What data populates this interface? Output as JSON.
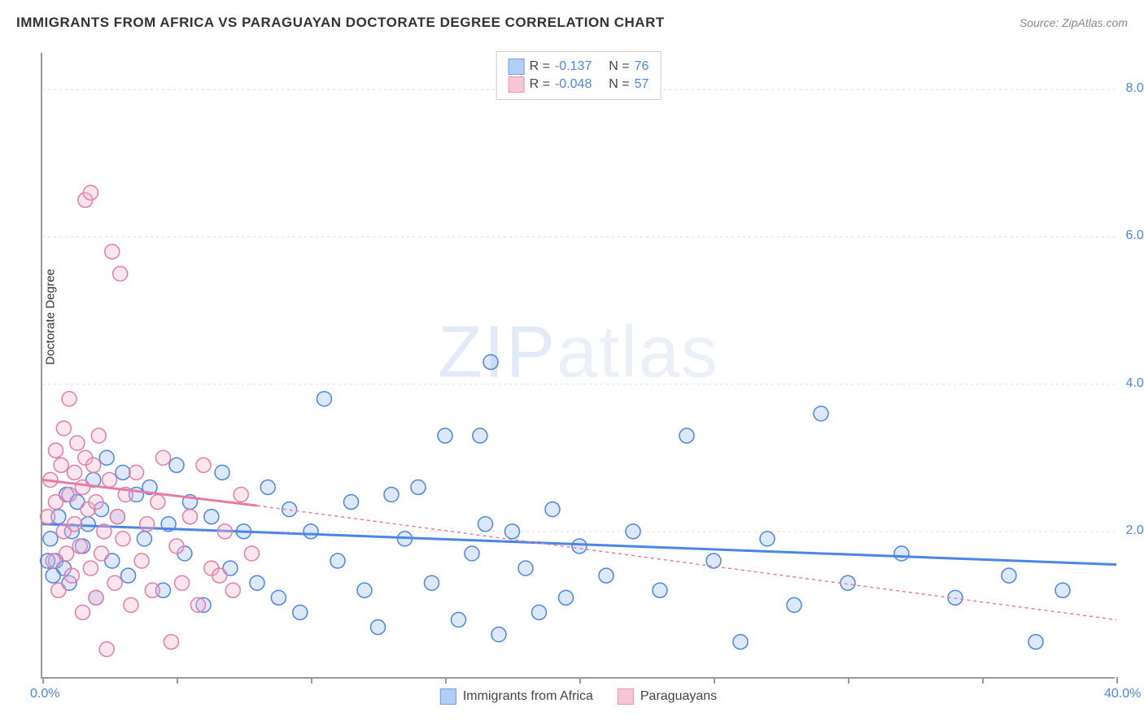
{
  "title": "IMMIGRANTS FROM AFRICA VS PARAGUAYAN DOCTORATE DEGREE CORRELATION CHART",
  "source": "Source: ZipAtlas.com",
  "watermark": {
    "bold": "ZIP",
    "light": "atlas"
  },
  "yaxis_title": "Doctorate Degree",
  "chart": {
    "type": "scatter",
    "background_color": "#ffffff",
    "grid_color": "#dddddd",
    "xlim": [
      0,
      40
    ],
    "ylim": [
      0,
      8.5
    ],
    "xtick_positions": [
      0,
      5,
      10,
      15,
      20,
      25,
      30,
      35,
      40
    ],
    "xtick_labels_shown": {
      "0": "0.0%",
      "40": "40.0%"
    },
    "ytick_positions": [
      0,
      2,
      4,
      6,
      8
    ],
    "ytick_labels": {
      "2": "2.0%",
      "4": "4.0%",
      "6": "6.0%",
      "8": "8.0%"
    },
    "marker_radius": 9,
    "marker_stroke_width": 1.5,
    "marker_fill_opacity": 0.35,
    "trendline_width": 3,
    "trendline_dash_extension": "4,4",
    "label_fontsize": 16,
    "axis_label_color": "#4a86e8",
    "series": [
      {
        "id": "africa",
        "label": "Immigrants from Africa",
        "color_stroke": "#4a86e8",
        "color_fill": "#9fc1f4",
        "R_label": "R =",
        "R": "-0.137",
        "N_label": "N =",
        "N": "76",
        "trend_start": [
          0,
          2.1
        ],
        "trend_data_end": [
          40,
          1.55
        ],
        "trend_extend_end": [
          40,
          1.55
        ],
        "points": [
          [
            0.5,
            1.6
          ],
          [
            0.6,
            2.2
          ],
          [
            0.8,
            1.5
          ],
          [
            0.9,
            2.5
          ],
          [
            1.0,
            1.3
          ],
          [
            1.1,
            2.0
          ],
          [
            1.3,
            2.4
          ],
          [
            1.5,
            1.8
          ],
          [
            1.7,
            2.1
          ],
          [
            1.9,
            2.7
          ],
          [
            2.0,
            1.1
          ],
          [
            2.2,
            2.3
          ],
          [
            2.4,
            3.0
          ],
          [
            2.6,
            1.6
          ],
          [
            2.8,
            2.2
          ],
          [
            3.0,
            2.8
          ],
          [
            3.2,
            1.4
          ],
          [
            3.5,
            2.5
          ],
          [
            3.8,
            1.9
          ],
          [
            4.0,
            2.6
          ],
          [
            4.5,
            1.2
          ],
          [
            4.7,
            2.1
          ],
          [
            5.0,
            2.9
          ],
          [
            5.3,
            1.7
          ],
          [
            5.5,
            2.4
          ],
          [
            6.0,
            1.0
          ],
          [
            6.3,
            2.2
          ],
          [
            6.7,
            2.8
          ],
          [
            7.0,
            1.5
          ],
          [
            7.5,
            2.0
          ],
          [
            8.0,
            1.3
          ],
          [
            8.4,
            2.6
          ],
          [
            8.8,
            1.1
          ],
          [
            9.2,
            2.3
          ],
          [
            9.6,
            0.9
          ],
          [
            10.0,
            2.0
          ],
          [
            10.5,
            3.8
          ],
          [
            11.0,
            1.6
          ],
          [
            11.5,
            2.4
          ],
          [
            12.0,
            1.2
          ],
          [
            12.5,
            0.7
          ],
          [
            13.0,
            2.5
          ],
          [
            13.5,
            1.9
          ],
          [
            14.0,
            2.6
          ],
          [
            14.5,
            1.3
          ],
          [
            15.0,
            3.3
          ],
          [
            15.5,
            0.8
          ],
          [
            16.0,
            1.7
          ],
          [
            16.3,
            3.3
          ],
          [
            16.5,
            2.1
          ],
          [
            16.7,
            4.3
          ],
          [
            17.0,
            0.6
          ],
          [
            17.5,
            2.0
          ],
          [
            18.0,
            1.5
          ],
          [
            18.5,
            0.9
          ],
          [
            19.0,
            2.3
          ],
          [
            19.5,
            1.1
          ],
          [
            20.0,
            1.8
          ],
          [
            21.0,
            1.4
          ],
          [
            22.0,
            2.0
          ],
          [
            23.0,
            1.2
          ],
          [
            24.0,
            3.3
          ],
          [
            25.0,
            1.6
          ],
          [
            26.0,
            0.5
          ],
          [
            27.0,
            1.9
          ],
          [
            29.0,
            3.6
          ],
          [
            28.0,
            1.0
          ],
          [
            30.0,
            1.3
          ],
          [
            32.0,
            1.7
          ],
          [
            34.0,
            1.1
          ],
          [
            36.0,
            1.4
          ],
          [
            37.0,
            0.5
          ],
          [
            38.0,
            1.2
          ],
          [
            0.4,
            1.4
          ],
          [
            0.3,
            1.9
          ],
          [
            0.2,
            1.6
          ]
        ]
      },
      {
        "id": "paraguay",
        "label": "Paraguayans",
        "color_stroke": "#e87ba4",
        "color_fill": "#f4b8ce",
        "R_label": "R =",
        "R": "-0.048",
        "N_label": "N =",
        "N": "57",
        "trend_start": [
          0,
          2.7
        ],
        "trend_data_end": [
          8,
          2.35
        ],
        "trend_extend_end": [
          40,
          0.8
        ],
        "points": [
          [
            0.2,
            2.2
          ],
          [
            0.3,
            2.7
          ],
          [
            0.4,
            1.6
          ],
          [
            0.5,
            3.1
          ],
          [
            0.5,
            2.4
          ],
          [
            0.6,
            1.2
          ],
          [
            0.7,
            2.9
          ],
          [
            0.8,
            2.0
          ],
          [
            0.8,
            3.4
          ],
          [
            0.9,
            1.7
          ],
          [
            1.0,
            2.5
          ],
          [
            1.0,
            3.8
          ],
          [
            1.1,
            1.4
          ],
          [
            1.2,
            2.8
          ],
          [
            1.2,
            2.1
          ],
          [
            1.3,
            3.2
          ],
          [
            1.4,
            1.8
          ],
          [
            1.5,
            2.6
          ],
          [
            1.5,
            0.9
          ],
          [
            1.6,
            3.0
          ],
          [
            1.6,
            6.5
          ],
          [
            1.7,
            2.3
          ],
          [
            1.8,
            1.5
          ],
          [
            1.8,
            6.6
          ],
          [
            1.9,
            2.9
          ],
          [
            2.0,
            1.1
          ],
          [
            2.0,
            2.4
          ],
          [
            2.1,
            3.3
          ],
          [
            2.2,
            1.7
          ],
          [
            2.3,
            2.0
          ],
          [
            2.4,
            0.4
          ],
          [
            2.5,
            2.7
          ],
          [
            2.6,
            5.8
          ],
          [
            2.7,
            1.3
          ],
          [
            2.8,
            2.2
          ],
          [
            2.9,
            5.5
          ],
          [
            3.0,
            1.9
          ],
          [
            3.1,
            2.5
          ],
          [
            3.3,
            1.0
          ],
          [
            3.5,
            2.8
          ],
          [
            3.7,
            1.6
          ],
          [
            3.9,
            2.1
          ],
          [
            4.1,
            1.2
          ],
          [
            4.3,
            2.4
          ],
          [
            4.5,
            3.0
          ],
          [
            4.8,
            0.5
          ],
          [
            5.0,
            1.8
          ],
          [
            5.2,
            1.3
          ],
          [
            5.5,
            2.2
          ],
          [
            5.8,
            1.0
          ],
          [
            6.0,
            2.9
          ],
          [
            6.3,
            1.5
          ],
          [
            6.6,
            1.4
          ],
          [
            6.8,
            2.0
          ],
          [
            7.1,
            1.2
          ],
          [
            7.4,
            2.5
          ],
          [
            7.8,
            1.7
          ]
        ]
      }
    ]
  }
}
